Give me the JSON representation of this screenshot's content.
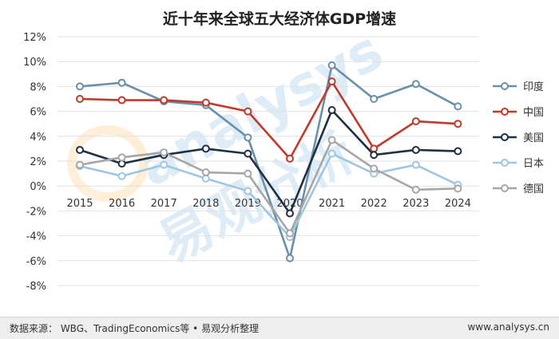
{
  "chart_data": {
    "type": "line",
    "title": "近十年来全球五大经济体GDP增速",
    "categories": [
      "2015",
      "2016",
      "2017",
      "2018",
      "2019",
      "2020",
      "2021",
      "2022",
      "2023",
      "2024"
    ],
    "ylim": [
      -8,
      12
    ],
    "yticks": [
      "12%",
      "10%",
      "8%",
      "6%",
      "4%",
      "2%",
      "0%",
      "-2%",
      "-4%",
      "-6%",
      "-8%"
    ],
    "ytick_values": [
      12,
      10,
      8,
      6,
      4,
      2,
      0,
      -2,
      -4,
      -6,
      -8
    ],
    "grid": "horizontal",
    "legend_position": "right",
    "series": [
      {
        "name": "印度",
        "color": "#6a8faa",
        "values": [
          8.0,
          8.3,
          6.8,
          6.5,
          3.9,
          -5.8,
          9.7,
          7.0,
          8.2,
          6.4
        ]
      },
      {
        "name": "中国",
        "color": "#c0392b",
        "values": [
          7.0,
          6.9,
          6.9,
          6.7,
          6.0,
          2.2,
          8.4,
          3.0,
          5.2,
          5.0
        ]
      },
      {
        "name": "美国",
        "color": "#1f3044",
        "values": [
          2.9,
          1.8,
          2.5,
          3.0,
          2.6,
          -2.2,
          6.1,
          2.5,
          2.9,
          2.8
        ]
      },
      {
        "name": "日本",
        "color": "#9fc6e0",
        "values": [
          1.6,
          0.8,
          1.7,
          0.6,
          -0.4,
          -4.1,
          2.6,
          1.0,
          1.7,
          0.1
        ]
      },
      {
        "name": "德国",
        "color": "#a6a6a6",
        "values": [
          1.7,
          2.3,
          2.7,
          1.1,
          1.0,
          -3.8,
          3.7,
          1.4,
          -0.3,
          -0.2
        ]
      }
    ]
  },
  "footer": {
    "source": "数据来源：  WBG、TradingEconomics等 • 易观分析整理",
    "url": "www.analysys.cn"
  },
  "watermark": {
    "en": "analysys",
    "cn": "易观分析"
  }
}
